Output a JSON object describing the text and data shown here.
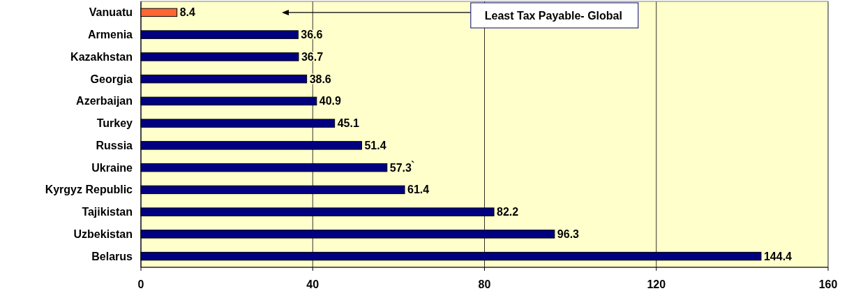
{
  "chart_data": {
    "type": "bar",
    "orientation": "horizontal",
    "categories": [
      "Vanuatu",
      "Armenia",
      "Kazakhstan",
      "Georgia",
      "Azerbaijan",
      "Turkey",
      "Russia",
      "Ukraine",
      "Kyrgyz Republic",
      "Tajikistan",
      "Uzbekistan",
      "Belarus"
    ],
    "values": [
      8.4,
      36.6,
      36.7,
      38.6,
      40.9,
      45.1,
      51.4,
      57.3,
      61.4,
      82.2,
      96.3,
      144.4
    ],
    "colors": [
      "#ff6633",
      "#000080",
      "#000080",
      "#000080",
      "#000080",
      "#000080",
      "#000080",
      "#000080",
      "#000080",
      "#000080",
      "#000080",
      "#000080"
    ],
    "xlim": [
      0,
      160
    ],
    "xticks": [
      0,
      40,
      80,
      120,
      160
    ],
    "grid": "x",
    "data_labels": true,
    "annotations": [
      "Least Tax Payable- Global",
      "`"
    ]
  }
}
